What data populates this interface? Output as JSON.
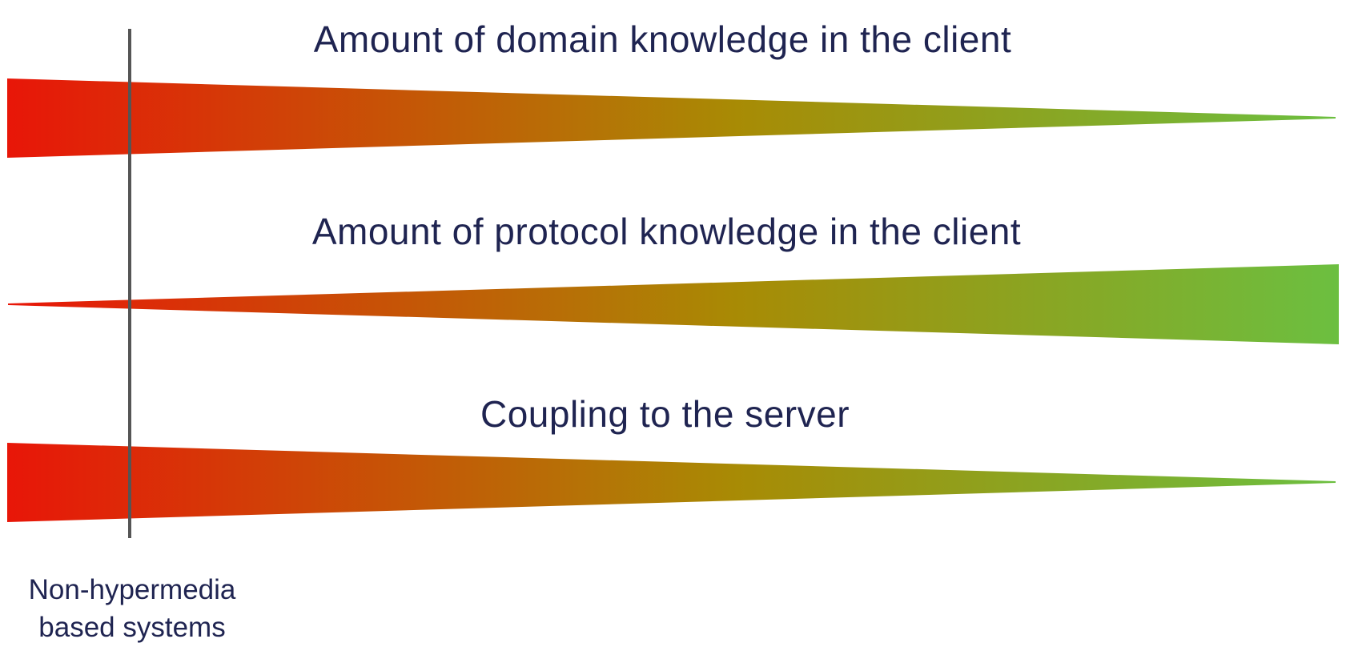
{
  "diagram": {
    "bars": [
      {
        "label": "Amount of domain knowledge in the client",
        "direction": "narrowing",
        "start_color": "#e81608",
        "mid_color": "#a88b05",
        "end_color": "#6cbf40"
      },
      {
        "label": "Amount of protocol knowledge in the client",
        "direction": "widening",
        "start_color": "#e81608",
        "mid_color": "#a88b05",
        "end_color": "#6cbf40"
      },
      {
        "label": "Coupling to the server",
        "direction": "narrowing",
        "start_color": "#e81608",
        "mid_color": "#a88b05",
        "end_color": "#6cbf40"
      }
    ],
    "marker_line_color": "#555555",
    "marker_label_line1": "Non-hypermedia",
    "marker_label_line2": "based systems"
  }
}
